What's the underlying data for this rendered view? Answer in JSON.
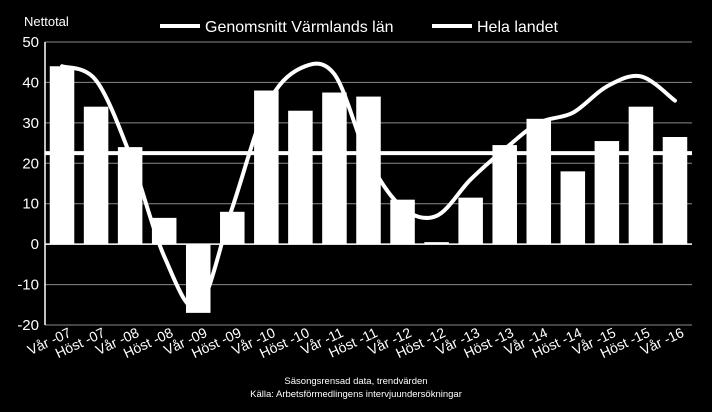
{
  "chart_data": {
    "type": "bar",
    "ylabel": "Nettotal",
    "ylim": [
      -20,
      50
    ],
    "yticks": [
      -20,
      -10,
      0,
      10,
      20,
      30,
      40,
      50
    ],
    "grid": true,
    "legend_placement": "top",
    "categories": [
      "Vår -07",
      "Höst -07",
      "Vår -08",
      "Höst -08",
      "Vår -09",
      "Höst -09",
      "Vår -10",
      "Höst -10",
      "Vår -11",
      "Höst -11",
      "Vår -12",
      "Höst -12",
      "Vår -13",
      "Höst -13",
      "Vår -14",
      "Höst -14",
      "Vår -15",
      "Höst -15",
      "Vår -16"
    ],
    "series": [
      {
        "name": "Genomsnitt Värmlands län",
        "type": "bar",
        "color": "#ffffff",
        "values": [
          44,
          34,
          24,
          6.5,
          -17,
          8,
          38,
          33,
          37.5,
          36.5,
          11,
          0.5,
          11.5,
          24.5,
          31,
          18,
          25.5,
          34,
          26.5
        ]
      },
      {
        "name": "Hela landet",
        "type": "line",
        "color": "#ffffff",
        "values": [
          44,
          40.5,
          22,
          -3,
          -15.5,
          9,
          34,
          43.5,
          42,
          21,
          9,
          7,
          16,
          23.5,
          30,
          32.5,
          39,
          41.5,
          35.5
        ]
      }
    ],
    "reference_line": {
      "value": 22.5,
      "color": "#ffffff"
    },
    "footnotes": [
      "Säsongsrensad data, trendvärden",
      "Källa: Arbetsförmedlingens intervjuundersökningar"
    ]
  }
}
